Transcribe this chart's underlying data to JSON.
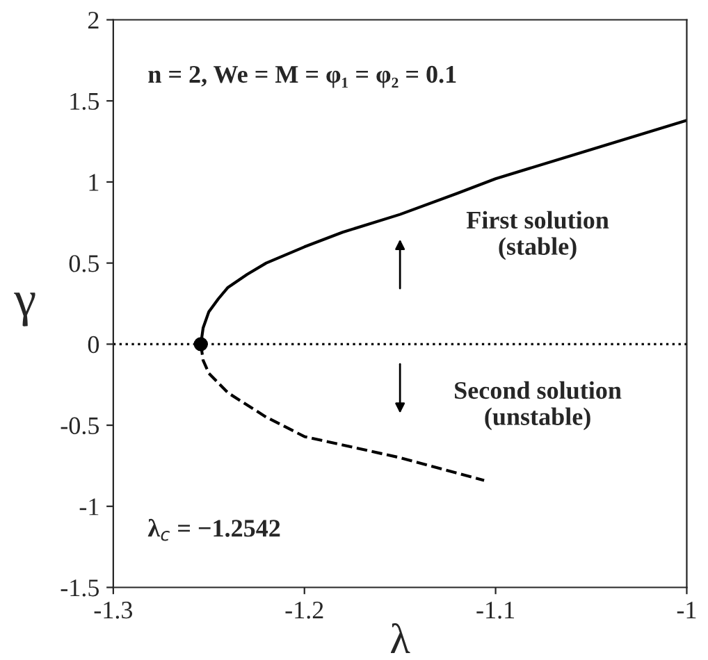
{
  "chart_data": {
    "type": "line",
    "xlabel": "λ",
    "ylabel": "γ",
    "xlim": [
      -1.3,
      -1
    ],
    "xticks": [
      -1.3,
      -1.2,
      -1.1,
      -1
    ],
    "ylim": [
      -1.5,
      2
    ],
    "yticks": [
      -1.5,
      -1,
      -0.5,
      0,
      0.5,
      1,
      1.5,
      2
    ],
    "grid": false,
    "series": [
      {
        "color": "#000000",
        "line_style": "solid",
        "x": [
          -1.2542,
          -1.253,
          -1.25,
          -1.245,
          -1.24,
          -1.23,
          -1.22,
          -1.2,
          -1.18,
          -1.15,
          -1.12,
          -1.1,
          -1.05,
          -1
        ],
        "values": [
          0,
          0.1,
          0.2,
          0.28,
          0.35,
          0.43,
          0.5,
          0.6,
          0.69,
          0.8,
          0.93,
          1.02,
          1.2,
          1.38
        ]
      },
      {
        "color": "#000000",
        "line_style": "dashed",
        "x": [
          -1.2542,
          -1.253,
          -1.25,
          -1.24,
          -1.22,
          -1.2,
          -1.15,
          -1.106
        ],
        "values": [
          0,
          -0.1,
          -0.18,
          -0.3,
          -0.45,
          -0.57,
          -0.7,
          -0.84
        ]
      },
      {
        "type": "scatter",
        "color": "#000000",
        "marker": "circle",
        "x": [
          -1.2542
        ],
        "values": [
          0
        ]
      }
    ],
    "ref_lines": [
      {
        "axis": "y",
        "value": 0,
        "color": "#000000",
        "line_style": "dotted"
      }
    ],
    "annotations": [
      "n = 2, We = M = φ₁ = φ₂ = 0.1",
      "First solution\n(stable)",
      "Second solution\n(unstable)",
      "λ$_{c}$ = −1.2542"
    ]
  }
}
